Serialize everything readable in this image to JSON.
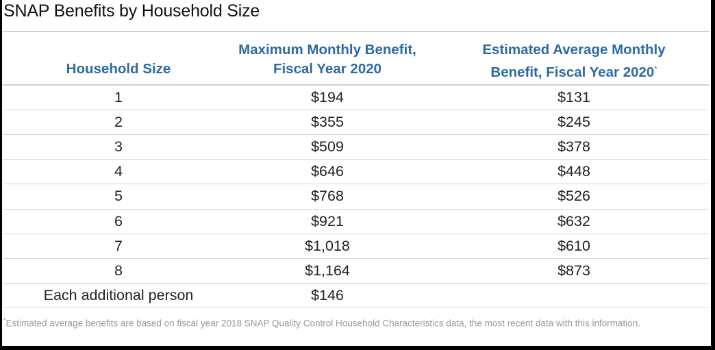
{
  "title": "SNAP Benefits by Household Size",
  "columns": {
    "household_size": "Household Size",
    "max_benefit_line1": "Maximum Monthly Benefit,",
    "max_benefit_line2": "Fiscal Year 2020",
    "avg_benefit_line1": "Estimated Average Monthly",
    "avg_benefit_line2": "Benefit, Fiscal Year 2020",
    "avg_marker": "*"
  },
  "rows": [
    {
      "size": "1",
      "max": "$194",
      "avg": "$131"
    },
    {
      "size": "2",
      "max": "$355",
      "avg": "$245"
    },
    {
      "size": "3",
      "max": "$509",
      "avg": "$378"
    },
    {
      "size": "4",
      "max": "$646",
      "avg": "$448"
    },
    {
      "size": "5",
      "max": "$768",
      "avg": "$526"
    },
    {
      "size": "6",
      "max": "$921",
      "avg": "$632"
    },
    {
      "size": "7",
      "max": "$1,018",
      "avg": "$610"
    },
    {
      "size": "8",
      "max": "$1,164",
      "avg": "$873"
    },
    {
      "size": "Each additional person",
      "max": "$146",
      "avg": ""
    }
  ],
  "footnote": {
    "marker": "*",
    "text": "Estimated average benefits are based on fiscal year 2018 SNAP Quality Control Household Characteristics data, the most recent data with this information."
  }
}
